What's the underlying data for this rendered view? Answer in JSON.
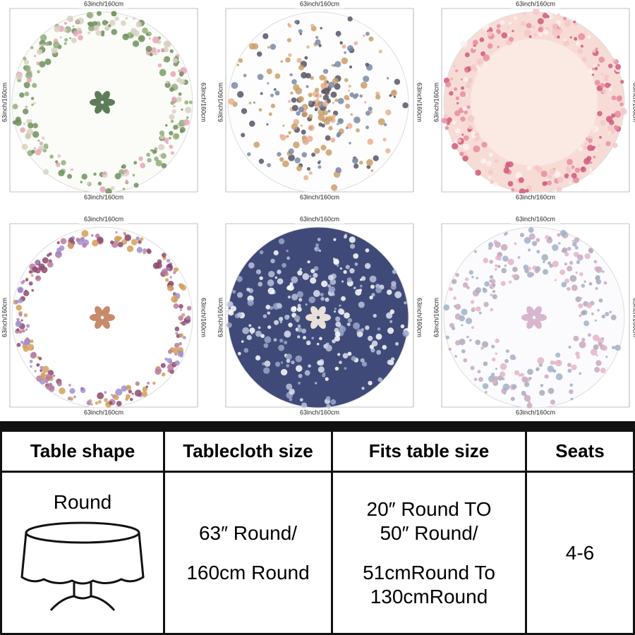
{
  "panels": [
    {
      "top": "63inch/160cm",
      "left": "63inch/160cm",
      "right": "63inch/160cm",
      "bottom": "63inch/160cm"
    },
    {
      "top": "63inch/160cm",
      "left": "63inch/160cm",
      "right": "63inch/160cm",
      "bottom": "63inch/160cm"
    },
    {
      "top": "63inch/160cm",
      "left": "63inch/160cm",
      "right": "63inch/160cm",
      "bottom": "63inch/160cm"
    },
    {
      "top": "63inch/160cm",
      "left": "63inch/160cm",
      "right": "63inch/160cm",
      "bottom": "63inch/160cm"
    },
    {
      "top": "63inch/160cm",
      "left": "63inch/160cm",
      "right": "63inch/160cm",
      "bottom": "63inch/160cm"
    },
    {
      "top": "63inch/160cm",
      "left": "63inch/160cm",
      "right": "63inch/160cm",
      "bottom": "63inch/160cm"
    }
  ],
  "table": {
    "headers": [
      "Table shape",
      "Tablecloth size",
      "Fits table size",
      "Seats"
    ],
    "shape": "Round",
    "size": [
      "63″ Round/",
      "160cm Round"
    ],
    "fits": [
      "20″ Round TO",
      "50″ Round/",
      "51cmRound To",
      "130cmRound"
    ],
    "seats": "4-6"
  }
}
